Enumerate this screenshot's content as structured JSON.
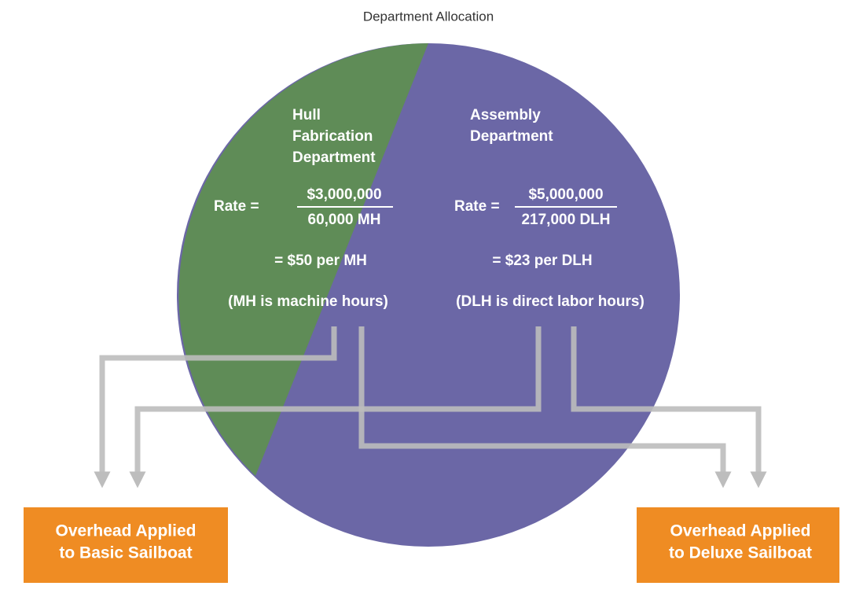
{
  "title": "Department Allocation",
  "departments": [
    {
      "name": [
        "Hull",
        "Fabrication",
        "Department"
      ],
      "rate_label": "Rate =",
      "numerator": "$3,000,000",
      "denominator": "60,000 MH",
      "result": "= $50 per MH",
      "note": "(MH is machine hours)"
    },
    {
      "name": [
        "Assembly",
        "Department"
      ],
      "rate_label": "Rate =",
      "numerator": "$5,000,000",
      "denominator": "217,000 DLH",
      "result": "= $23 per DLH",
      "note": "(DLH is direct labor hours)"
    }
  ],
  "boxes": [
    {
      "lines": [
        "Overhead Applied",
        "to Basic Sailboat"
      ]
    },
    {
      "lines": [
        "Overhead Applied",
        "to Deluxe Sailboat"
      ]
    }
  ]
}
